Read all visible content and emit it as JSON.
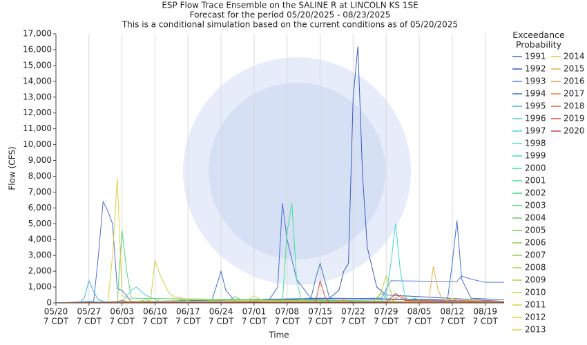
{
  "chart_data": {
    "type": "line",
    "title": [
      "ESP Flow Trace Ensemble on the SALINE R at LINCOLN KS 1SE",
      "Forecast for the period 05/20/2025 - 08/23/2025",
      "This is a conditional simulation based on the current conditions as of 05/20/2025"
    ],
    "x_label": "Time",
    "y_label": "Flow (CFS)",
    "legend_title": "Exceedance Probability",
    "xlim": [
      "05/20",
      "08/23"
    ],
    "ylim": [
      0,
      17000
    ],
    "grid": "x",
    "xticks": [
      {
        "value": "05/20",
        "label": [
          "05/20",
          "7 CDT"
        ]
      },
      {
        "value": "05/27",
        "label": [
          "05/27",
          "7 CDT"
        ]
      },
      {
        "value": "06/03",
        "label": [
          "06/03",
          "7 CDT"
        ]
      },
      {
        "value": "06/10",
        "label": [
          "06/10",
          "7 CDT"
        ]
      },
      {
        "value": "06/17",
        "label": [
          "06/17",
          "7 CDT"
        ]
      },
      {
        "value": "06/24",
        "label": [
          "06/24",
          "7 CDT"
        ]
      },
      {
        "value": "07/01",
        "label": [
          "07/01",
          "7 CDT"
        ]
      },
      {
        "value": "07/08",
        "label": [
          "07/08",
          "7 CDT"
        ]
      },
      {
        "value": "07/15",
        "label": [
          "07/15",
          "7 CDT"
        ]
      },
      {
        "value": "07/22",
        "label": [
          "07/22",
          "7 CDT"
        ]
      },
      {
        "value": "07/29",
        "label": [
          "07/29",
          "7 CDT"
        ]
      },
      {
        "value": "08/05",
        "label": [
          "08/05",
          "7 CDT"
        ]
      },
      {
        "value": "08/12",
        "label": [
          "08/12",
          "7 CDT"
        ]
      },
      {
        "value": "08/19",
        "label": [
          "08/19",
          "7 CDT"
        ]
      }
    ],
    "yticks": [
      0,
      {
        "value": 1000,
        "label": "1,000"
      },
      {
        "value": 2000,
        "label": "2,000"
      },
      {
        "value": 3000,
        "label": "3,000"
      },
      {
        "value": 4000,
        "label": "4,000"
      },
      {
        "value": 5000,
        "label": "5,000"
      },
      {
        "value": 6000,
        "label": "6,000"
      },
      {
        "value": 7000,
        "label": "7,000"
      },
      {
        "value": 8000,
        "label": "8,000"
      },
      {
        "value": 9000,
        "label": "9,000"
      },
      {
        "value": 10000,
        "label": "10,000"
      },
      {
        "value": 11000,
        "label": "11,000"
      },
      {
        "value": 12000,
        "label": "12,000"
      },
      {
        "value": 13000,
        "label": "13,000"
      },
      {
        "value": 14000,
        "label": "14,000"
      },
      {
        "value": 15000,
        "label": "15,000"
      },
      {
        "value": 16000,
        "label": "16,000"
      },
      {
        "value": 17000,
        "label": "17,000"
      }
    ],
    "series": [
      {
        "name": "1991",
        "color": "#4a6cd4",
        "x": [
          "05/20",
          "05/28",
          "05/29",
          "05/30",
          "05/31",
          "06/01",
          "06/02",
          "06/03",
          "06/05",
          "07/04",
          "07/06",
          "07/07",
          "07/08",
          "07/10",
          "07/13",
          "08/23"
        ],
        "values": [
          0,
          100,
          3000,
          6400,
          5800,
          5000,
          900,
          800,
          100,
          100,
          1000,
          6300,
          4000,
          1500,
          300,
          100
        ]
      },
      {
        "name": "1992",
        "color": "#3a58c0",
        "x": [
          "05/20",
          "07/17",
          "07/19",
          "07/20",
          "07/21",
          "07/22",
          "07/23",
          "07/24",
          "07/25",
          "07/27",
          "07/29",
          "08/05",
          "08/23"
        ],
        "values": [
          0,
          300,
          800,
          2000,
          2500,
          13000,
          16200,
          8000,
          3500,
          1000,
          500,
          400,
          100
        ]
      },
      {
        "name": "1993",
        "color": "#5a7ce0",
        "x": [
          "05/20",
          "07/28",
          "07/30",
          "08/13",
          "08/14",
          "08/16",
          "08/19",
          "08/23"
        ],
        "values": [
          0,
          300,
          1400,
          1350,
          1700,
          1500,
          1300,
          1300
        ]
      },
      {
        "name": "1994",
        "color": "#3f6fd0",
        "x": [
          "05/20",
          "06/22",
          "06/24",
          "06/25",
          "06/27",
          "07/13",
          "07/14",
          "07/15",
          "07/17",
          "08/11",
          "08/12",
          "08/13",
          "08/14",
          "08/16",
          "08/23"
        ],
        "values": [
          0,
          100,
          2000,
          800,
          100,
          200,
          1500,
          2500,
          300,
          200,
          2500,
          5200,
          1500,
          300,
          200
        ]
      },
      {
        "name": "1995",
        "color": "#40b0e0",
        "x": [
          "05/20",
          "05/25",
          "05/26",
          "05/27",
          "05/28",
          "05/29",
          "05/31",
          "08/23"
        ],
        "values": [
          0,
          0,
          300,
          1400,
          700,
          200,
          0,
          0
        ]
      },
      {
        "name": "1996",
        "color": "#50c8e8",
        "x": [
          "05/20",
          "06/03",
          "06/05",
          "06/06",
          "06/08",
          "06/11",
          "08/23"
        ],
        "values": [
          0,
          100,
          800,
          1000,
          500,
          100,
          50
        ]
      },
      {
        "name": "1997",
        "color": "#40d8d8",
        "x": [
          "05/20",
          "07/28",
          "07/29",
          "07/30",
          "07/31",
          "08/01",
          "08/02",
          "08/03",
          "08/23"
        ],
        "values": [
          0,
          100,
          500,
          2500,
          5000,
          2000,
          400,
          100,
          50
        ]
      },
      {
        "name": "1998",
        "color": "#40e0c8",
        "x": [
          "05/20",
          "07/02",
          "07/04",
          "07/06",
          "08/23"
        ],
        "values": [
          0,
          50,
          200,
          50,
          0
        ]
      },
      {
        "name": "1999",
        "color": "#40e0b0",
        "x": [
          "05/20",
          "06/14",
          "06/16",
          "06/18",
          "08/23"
        ],
        "values": [
          0,
          50,
          250,
          50,
          0
        ]
      },
      {
        "name": "2000",
        "color": "#40e0a0",
        "x": [
          "05/20",
          "08/02",
          "08/04",
          "08/06",
          "08/23"
        ],
        "values": [
          0,
          50,
          300,
          100,
          50
        ]
      },
      {
        "name": "2001",
        "color": "#40e090",
        "x": [
          "05/20",
          "07/07",
          "07/08",
          "07/09",
          "07/10",
          "07/11",
          "08/23"
        ],
        "values": [
          0,
          0,
          4500,
          6300,
          1500,
          200,
          0
        ]
      },
      {
        "name": "2002",
        "color": "#40d880",
        "x": [
          "05/20",
          "06/20",
          "06/22",
          "06/24",
          "08/23"
        ],
        "values": [
          0,
          50,
          150,
          50,
          0
        ]
      },
      {
        "name": "2003",
        "color": "#50d870",
        "x": [
          "05/20",
          "06/02",
          "06/03",
          "06/04",
          "06/05",
          "08/23"
        ],
        "values": [
          0,
          0,
          4600,
          2000,
          300,
          0
        ]
      },
      {
        "name": "2004",
        "color": "#60d060",
        "x": [
          "05/20",
          "07/26",
          "07/28",
          "07/30",
          "08/23"
        ],
        "values": [
          0,
          50,
          600,
          100,
          0
        ]
      },
      {
        "name": "2005",
        "color": "#70d050",
        "x": [
          "05/20",
          "06/25",
          "06/27",
          "06/29",
          "08/23"
        ],
        "values": [
          0,
          50,
          400,
          50,
          0
        ]
      },
      {
        "name": "2006",
        "color": "#80d048",
        "x": [
          "05/20",
          "06/06",
          "06/08",
          "06/10",
          "08/23"
        ],
        "values": [
          0,
          50,
          200,
          50,
          0
        ]
      },
      {
        "name": "2007",
        "color": "#90d040",
        "x": [
          "05/20",
          "08/14",
          "08/16",
          "08/18",
          "08/23"
        ],
        "values": [
          0,
          50,
          250,
          50,
          0
        ]
      },
      {
        "name": "2008",
        "color": "#a8d040",
        "x": [
          "05/20",
          "07/09",
          "07/11",
          "07/13",
          "08/23"
        ],
        "values": [
          0,
          50,
          200,
          50,
          0
        ]
      },
      {
        "name": "2009",
        "color": "#b8d040",
        "x": [
          "05/20",
          "07/27",
          "07/28",
          "07/29",
          "07/30",
          "07/31",
          "08/23"
        ],
        "values": [
          0,
          50,
          800,
          1700,
          700,
          100,
          0
        ]
      },
      {
        "name": "2010",
        "color": "#c8d040",
        "x": [
          "05/20",
          "06/09",
          "06/10",
          "06/11",
          "06/13",
          "06/15",
          "08/23"
        ],
        "values": [
          0,
          0,
          2700,
          1800,
          600,
          200,
          0
        ]
      },
      {
        "name": "2011",
        "color": "#d8d040",
        "x": [
          "05/20",
          "06/29",
          "07/01",
          "07/03",
          "08/23"
        ],
        "values": [
          0,
          50,
          450,
          100,
          0
        ]
      },
      {
        "name": "2012",
        "color": "#e0d040",
        "x": [
          "05/20",
          "05/31",
          "06/01",
          "06/02",
          "06/03",
          "06/05",
          "08/23"
        ],
        "values": [
          0,
          0,
          3000,
          7900,
          500,
          100,
          0
        ]
      },
      {
        "name": "2013",
        "color": "#e8d040",
        "x": [
          "05/20",
          "08/10",
          "08/12",
          "08/14",
          "08/23"
        ],
        "values": [
          0,
          50,
          300,
          50,
          0
        ]
      },
      {
        "name": "2014",
        "color": "#e8c840",
        "x": [
          "05/20",
          "06/13",
          "06/15",
          "06/17",
          "08/23"
        ],
        "values": [
          0,
          50,
          400,
          100,
          0
        ]
      },
      {
        "name": "2015",
        "color": "#e8b040",
        "x": [
          "05/20",
          "08/07",
          "08/08",
          "08/09",
          "08/10",
          "08/23"
        ],
        "values": [
          0,
          100,
          2300,
          800,
          200,
          100
        ]
      },
      {
        "name": "2016",
        "color": "#e89840",
        "x": [
          "05/20",
          "07/18",
          "07/20",
          "07/22",
          "08/23"
        ],
        "values": [
          0,
          50,
          200,
          50,
          0
        ]
      },
      {
        "name": "2017",
        "color": "#e08040",
        "x": [
          "05/20",
          "07/30",
          "08/01",
          "08/03",
          "08/23"
        ],
        "values": [
          0,
          50,
          500,
          100,
          0
        ]
      },
      {
        "name": "2018",
        "color": "#e06840",
        "x": [
          "05/20",
          "06/01",
          "06/03",
          "06/05",
          "08/23"
        ],
        "values": [
          0,
          50,
          150,
          50,
          0
        ]
      },
      {
        "name": "2019",
        "color": "#d85040",
        "x": [
          "05/20",
          "07/14",
          "07/15",
          "07/16",
          "07/17",
          "08/23"
        ],
        "values": [
          0,
          0,
          1400,
          400,
          0,
          0
        ]
      },
      {
        "name": "2020",
        "color": "#d04040",
        "x": [
          "05/20",
          "07/29",
          "07/31",
          "08/02",
          "08/23"
        ],
        "values": [
          0,
          50,
          600,
          150,
          50
        ]
      }
    ]
  }
}
